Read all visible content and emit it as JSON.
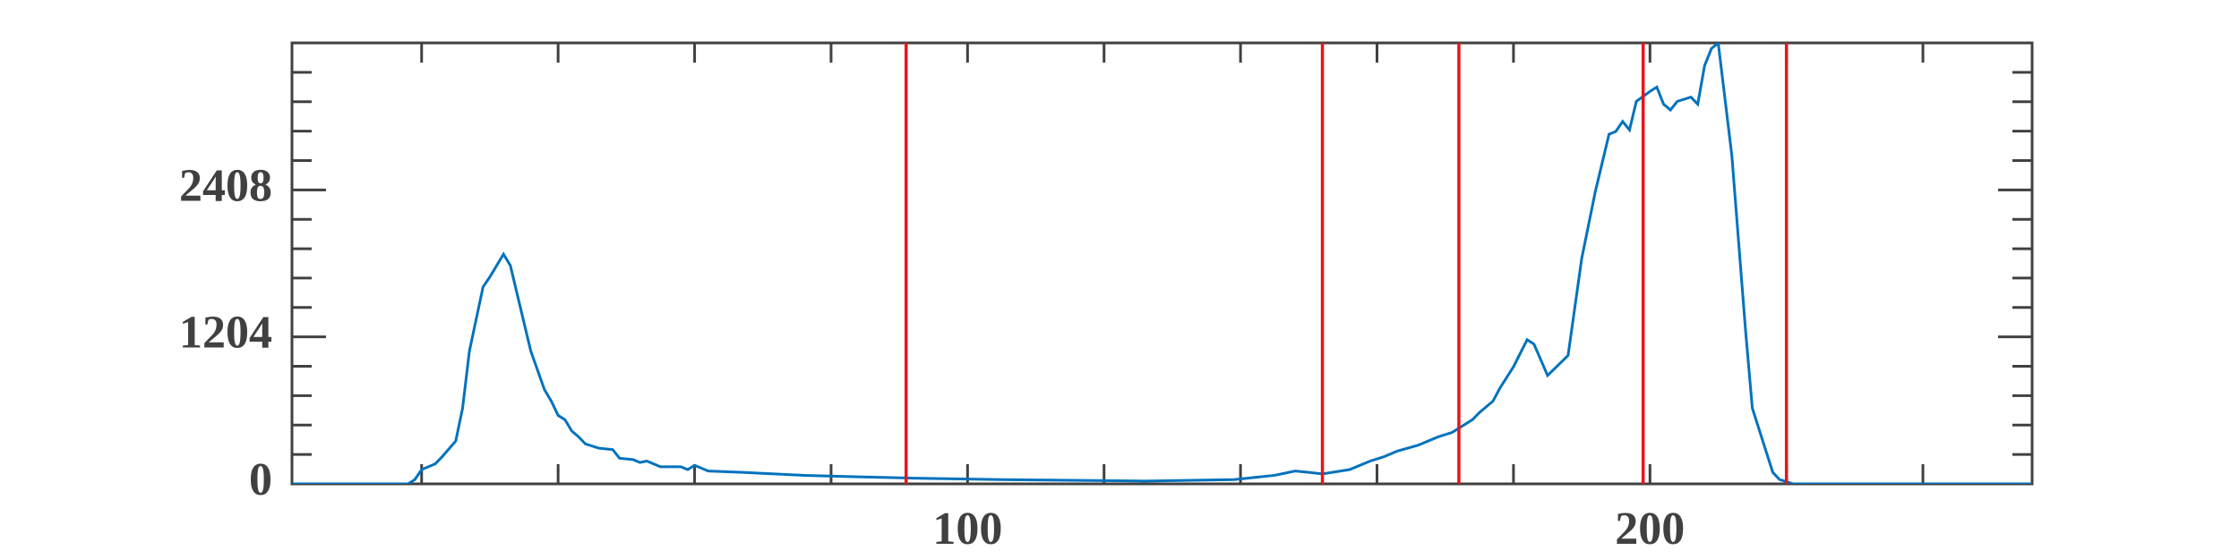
{
  "chart_data": {
    "type": "line",
    "x": [
      1,
      18,
      19,
      20,
      22,
      23,
      25,
      26,
      27,
      29,
      30,
      32,
      33,
      34,
      36,
      38,
      39,
      40,
      41,
      42,
      43,
      44,
      46,
      48,
      49,
      51,
      52,
      53,
      55,
      58,
      59,
      60,
      62,
      67,
      76,
      84,
      92,
      105,
      126,
      139,
      145,
      148,
      150,
      152,
      156,
      159,
      161,
      163,
      166,
      169,
      171,
      174,
      175,
      177,
      178,
      180,
      182,
      183,
      185,
      188,
      190,
      192,
      194,
      195,
      196,
      197,
      198,
      200,
      201,
      202,
      203,
      204,
      206,
      207,
      208,
      209,
      210,
      212,
      214,
      215,
      217,
      218,
      219,
      221,
      256
    ],
    "series": [
      {
        "color": "#0072bd",
        "values": [
          0,
          0,
          35,
          117,
          164,
          222,
          351,
          620,
          1087,
          1613,
          1695,
          1882,
          1789,
          1555,
          1087,
          772,
          678,
          561,
          526,
          433,
          386,
          327,
          292,
          281,
          210,
          199,
          175,
          187,
          140,
          140,
          117,
          152,
          105,
          94,
          70,
          58,
          47,
          35,
          23,
          35,
          70,
          105,
          94,
          82,
          117,
          187,
          222,
          269,
          316,
          386,
          421,
          526,
          584,
          678,
          783,
          959,
          1181,
          1145,
          888,
          1052,
          1847,
          2396,
          2864,
          2887,
          2969,
          2899,
          3133,
          3215,
          3250,
          3110,
          3063,
          3133,
          3168,
          3110,
          3425,
          3565,
          3612,
          2689,
          1262,
          620,
          269,
          94,
          35,
          0,
          0
        ]
      }
    ],
    "vlines": {
      "color": "#e8141c",
      "values": [
        91,
        152,
        172,
        199,
        220
      ]
    },
    "xlim": [
      1,
      256
    ],
    "xticks": [
      100,
      200
    ],
    "xminorticks": [
      20,
      40,
      60,
      80,
      120,
      140,
      160,
      180,
      220,
      240
    ],
    "ylim": [
      0,
      3612
    ],
    "yticks": [
      0,
      1204,
      2408
    ],
    "yminorticks": [
      240.8,
      481.6,
      722.4,
      963.2,
      1444.8,
      1685.6,
      1926.4,
      2167.2,
      2648.8,
      2889.6,
      3130.4,
      3371.2
    ]
  }
}
